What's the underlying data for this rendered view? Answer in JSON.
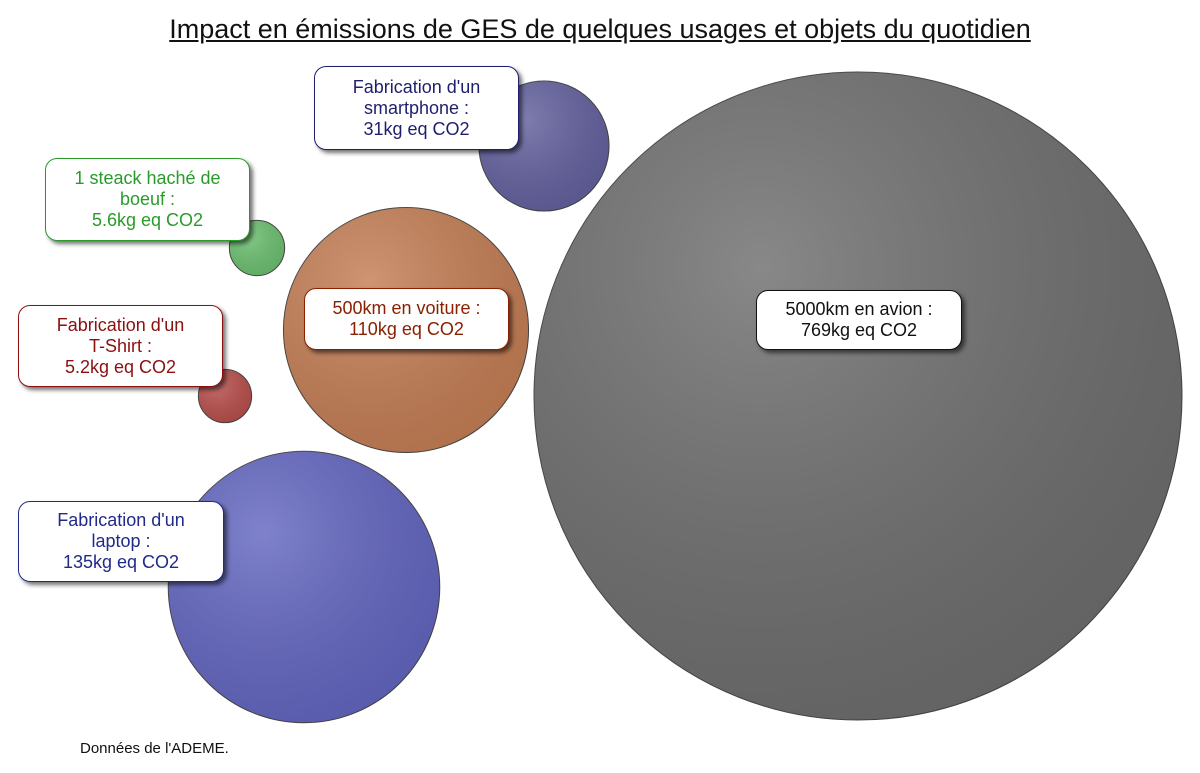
{
  "title": "Impact en émissions de GES de quelques usages et objets du quotidien",
  "source": "Données de l'ADEME.",
  "chart_data": {
    "type": "bubble",
    "unit": "kg eq CO2",
    "items": [
      {
        "id": "avion",
        "value": 769,
        "label_lines": [
          "5000km en avion :",
          "769kg eq CO2"
        ],
        "color": "#6e6e6e",
        "text_color": "#111111"
      },
      {
        "id": "laptop",
        "value": 135,
        "label_lines": [
          "Fabrication d'un",
          "laptop :",
          "135kg eq CO2"
        ],
        "color": "#6366c0",
        "text_color": "#1f2a8a"
      },
      {
        "id": "voiture",
        "value": 110,
        "label_lines": [
          "500km en voiture :",
          "110kg eq CO2"
        ],
        "color": "#c47e55",
        "text_color": "#8b2000"
      },
      {
        "id": "smartphone",
        "value": 31,
        "label_lines": [
          "Fabrication d'un",
          "smartphone :",
          "31kg eq CO2"
        ],
        "color": "#63619e",
        "text_color": "#1f1f6e"
      },
      {
        "id": "steak",
        "value": 5.6,
        "label_lines": [
          "1 steack haché de",
          "boeuf :",
          "5.6kg eq CO2"
        ],
        "color": "#6cbf70",
        "text_color": "#2a9a2a"
      },
      {
        "id": "tshirt",
        "value": 5.2,
        "label_lines": [
          "Fabrication d'un",
          "T-Shirt :",
          "5.2kg eq CO2"
        ],
        "color": "#b84f4c",
        "text_color": "#8b1010"
      }
    ]
  }
}
